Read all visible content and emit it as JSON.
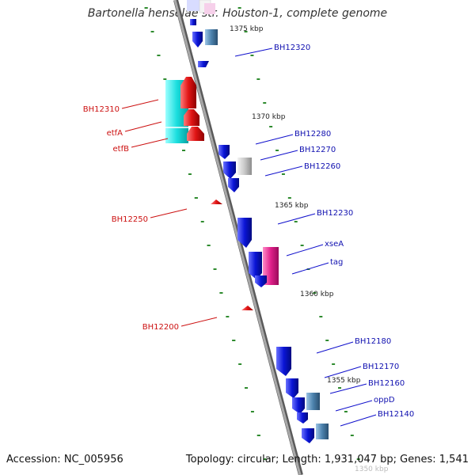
{
  "title": "Bartonella henselae str. Houston-1, complete genome",
  "accession": "Accession: NC_005956",
  "topology": "Topology: circular; Length: 1,931,047 bp; Genes: 1,541",
  "colors": {
    "backbone": "#8f8f8f",
    "tick": "#2e8b2e",
    "forward_gene": "#0a14d6",
    "reverse_gene": "#e01515",
    "cyan_feature": "#1adede",
    "pink_feature": "#e0208a",
    "gray_feature": "#bdbdbd",
    "steel_feature": "#4c82ad",
    "label_forward": "#1010b0",
    "label_reverse": "#cc1010"
  },
  "scale_labels": [
    "1375 kbp",
    "1370 kbp",
    "1365 kbp",
    "1360 kbp",
    "1355 kbp",
    "1350 kbp"
  ],
  "gene_labels": {
    "forward": [
      "BH12320",
      "BH12280",
      "BH12270",
      "BH12260",
      "BH12230",
      "xseA",
      "tag",
      "BH12180",
      "BH12170",
      "BH12160",
      "oppD",
      "BH12140"
    ],
    "reverse": [
      "BH12310",
      "etfA",
      "etfB",
      "BH12250",
      "BH12200"
    ]
  }
}
